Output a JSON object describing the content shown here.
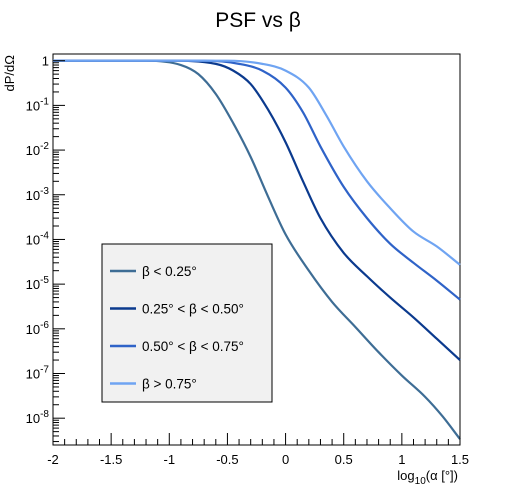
{
  "chart_data": {
    "type": "line",
    "title": "PSF vs β",
    "xlabel": "log10(α [°])",
    "ylabel": "dP/dΩ",
    "xlim": [
      -2,
      1.5
    ],
    "ylim_log10": [
      -8.6,
      0.15
    ],
    "yscale": "log",
    "x_tick_labels": [
      "-2",
      "-1.5",
      "-1",
      "-0.5",
      "0",
      "0.5",
      "1",
      "1.5"
    ],
    "y_tick_labels": [
      "1",
      "10^-1",
      "10^-2",
      "10^-3",
      "10^-4",
      "10^-5",
      "10^-6",
      "10^-7",
      "10^-8"
    ],
    "grid": false,
    "legend_position": "bottom-left",
    "series": [
      {
        "name": "β < 0.25°",
        "color": "#3e6d95",
        "points": [
          [
            -2,
            1.0
          ],
          [
            -1.2,
            1.0
          ],
          [
            -0.9,
            0.8
          ],
          [
            -0.75,
            0.5
          ],
          [
            -0.6,
            0.18
          ],
          [
            -0.45,
            0.04
          ],
          [
            -0.3,
            0.007
          ],
          [
            -0.15,
            0.0009
          ],
          [
            0,
            0.00013
          ],
          [
            0.2,
            2e-05
          ],
          [
            0.4,
            4e-06
          ],
          [
            0.6,
            1.1e-06
          ],
          [
            0.8,
            3e-07
          ],
          [
            1.0,
            9e-08
          ],
          [
            1.2,
            3e-08
          ],
          [
            1.35,
            1.1e-08
          ],
          [
            1.5,
            3.4e-09
          ]
        ]
      },
      {
        "name": "0.25° < β < 0.50°",
        "color": "#0b3a8e",
        "points": [
          [
            -2,
            1.0
          ],
          [
            -1.0,
            1.0
          ],
          [
            -0.6,
            0.85
          ],
          [
            -0.45,
            0.6
          ],
          [
            -0.3,
            0.3
          ],
          [
            -0.15,
            0.08
          ],
          [
            0,
            0.015
          ],
          [
            0.15,
            0.002
          ],
          [
            0.3,
            0.0003
          ],
          [
            0.5,
            5e-05
          ],
          [
            0.7,
            1.5e-05
          ],
          [
            0.9,
            5e-06
          ],
          [
            1.1,
            1.8e-06
          ],
          [
            1.3,
            6e-07
          ],
          [
            1.5,
            2e-07
          ]
        ]
      },
      {
        "name": "0.50° < β < 0.75°",
        "color": "#2f63c8",
        "points": [
          [
            -2,
            1.0
          ],
          [
            -0.7,
            1.0
          ],
          [
            -0.4,
            0.85
          ],
          [
            -0.2,
            0.6
          ],
          [
            0,
            0.25
          ],
          [
            0.15,
            0.07
          ],
          [
            0.3,
            0.012
          ],
          [
            0.5,
            0.0015
          ],
          [
            0.7,
            0.0003
          ],
          [
            0.9,
            8e-05
          ],
          [
            1.1,
            3e-05
          ],
          [
            1.3,
            1.2e-05
          ],
          [
            1.5,
            4.5e-06
          ]
        ]
      },
      {
        "name": "β > 0.75°",
        "color": "#6fa4f2",
        "points": [
          [
            -2,
            1.0
          ],
          [
            -0.5,
            1.0
          ],
          [
            -0.2,
            0.85
          ],
          [
            0,
            0.6
          ],
          [
            0.2,
            0.25
          ],
          [
            0.35,
            0.06
          ],
          [
            0.5,
            0.012
          ],
          [
            0.7,
            0.002
          ],
          [
            0.9,
            0.0005
          ],
          [
            1.1,
            0.00015
          ],
          [
            1.3,
            7e-05
          ],
          [
            1.5,
            2.7e-05
          ]
        ]
      }
    ]
  }
}
